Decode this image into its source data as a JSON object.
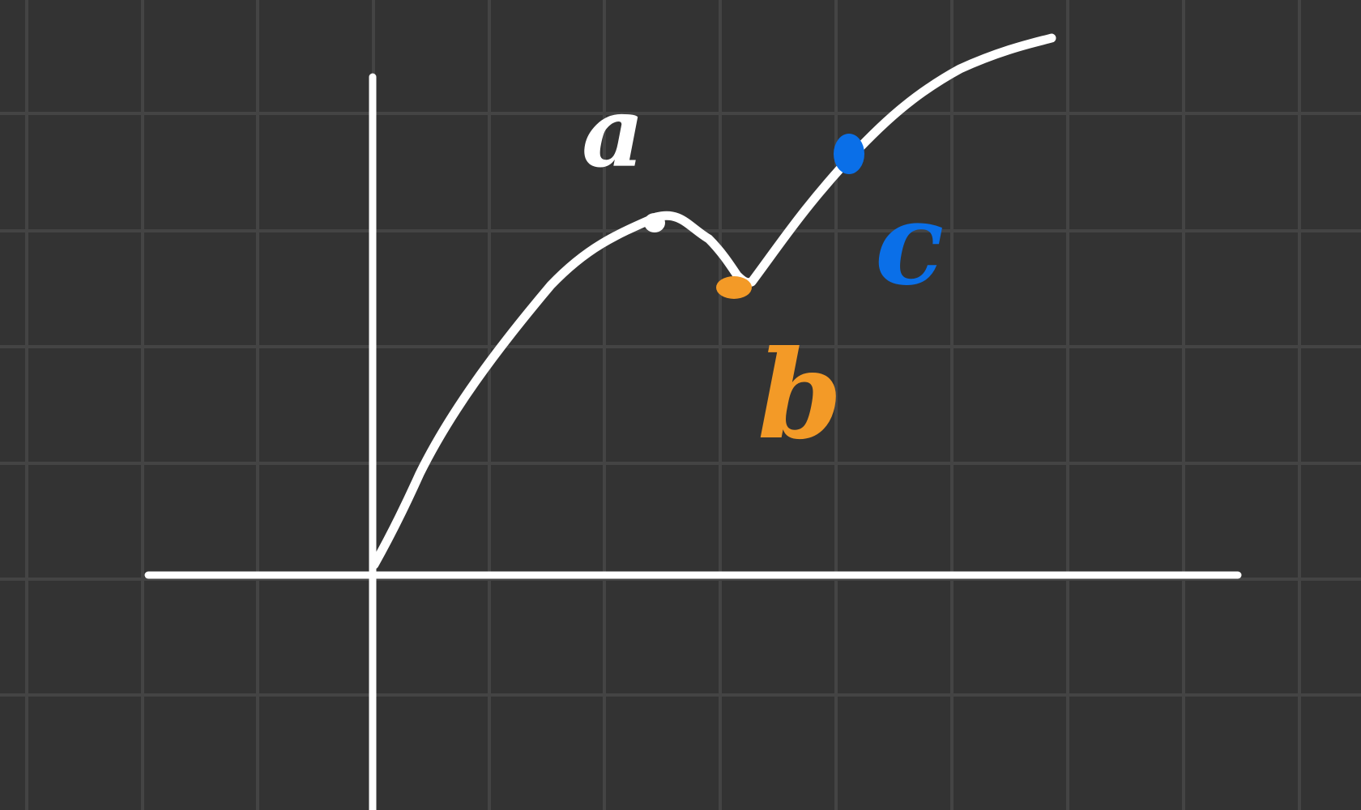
{
  "canvas": {
    "background": "#333333",
    "grid_color": "#444444",
    "stroke_color": "#ffffff"
  },
  "points": [
    {
      "id": "a",
      "label": "a",
      "color": "#ffffff"
    },
    {
      "id": "b",
      "label": "b",
      "color": "#f39a27"
    },
    {
      "id": "c",
      "label": "c",
      "color": "#0a6fe8"
    }
  ]
}
